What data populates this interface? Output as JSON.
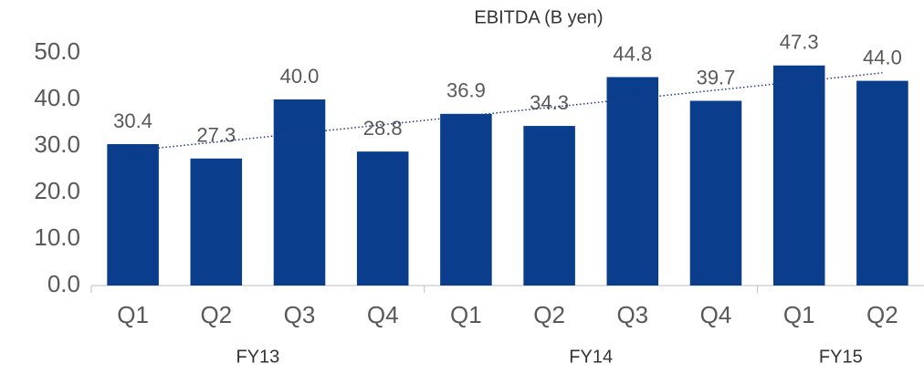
{
  "chart_data": {
    "type": "bar",
    "title": "EBITDA (B yen)",
    "groups": [
      {
        "label": "FY13",
        "categories": [
          "Q1",
          "Q2",
          "Q3",
          "Q4"
        ]
      },
      {
        "label": "FY14",
        "categories": [
          "Q1",
          "Q2",
          "Q3",
          "Q4"
        ]
      },
      {
        "label": "FY15",
        "categories": [
          "Q1",
          "Q2"
        ]
      }
    ],
    "values": [
      30.4,
      27.3,
      40.0,
      28.8,
      36.9,
      34.3,
      44.8,
      39.7,
      47.3,
      44.0
    ],
    "value_labels": [
      "30.4",
      "27.3",
      "40.0",
      "28.8",
      "36.9",
      "34.3",
      "44.8",
      "39.7",
      "47.3",
      "44.0"
    ],
    "color": "#0a3d8c",
    "ylim": [
      0,
      50
    ],
    "yticks": [
      {
        "value": 0,
        "label": "0.0"
      },
      {
        "value": 10,
        "label": "10.0"
      },
      {
        "value": 20,
        "label": "20.0"
      },
      {
        "value": 30,
        "label": "30.0"
      },
      {
        "value": 40,
        "label": "40.0"
      },
      {
        "value": 50,
        "label": "50.0"
      }
    ],
    "grid": false,
    "trendline": "linear"
  }
}
